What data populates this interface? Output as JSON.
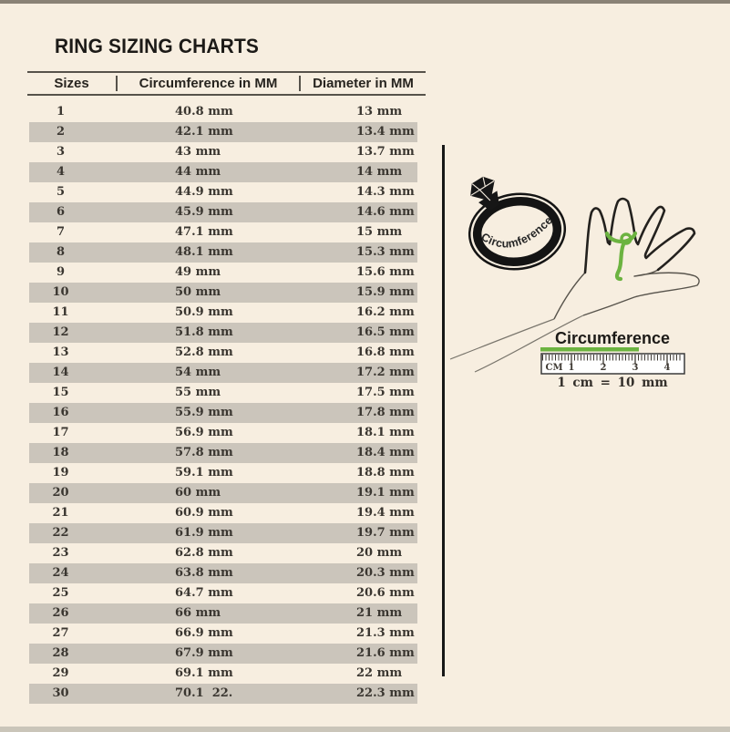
{
  "title": "RING SIZING CHARTS",
  "table": {
    "headers": [
      "Sizes",
      "Circumference in MM",
      "Diameter in MM"
    ],
    "rows": [
      {
        "size": "1",
        "circumference": "40.8 mm",
        "diameter": "13 mm"
      },
      {
        "size": "2",
        "circumference": "42.1 mm",
        "diameter": "13.4 mm"
      },
      {
        "size": "3",
        "circumference": "43 mm",
        "diameter": "13.7 mm"
      },
      {
        "size": "4",
        "circumference": "44 mm",
        "diameter": "14 mm"
      },
      {
        "size": "5",
        "circumference": "44.9 mm",
        "diameter": "14.3 mm"
      },
      {
        "size": "6",
        "circumference": "45.9 mm",
        "diameter": "14.6 mm"
      },
      {
        "size": "7",
        "circumference": "47.1 mm",
        "diameter": "15 mm"
      },
      {
        "size": "8",
        "circumference": "48.1 mm",
        "diameter": "15.3 mm"
      },
      {
        "size": "9",
        "circumference": "49 mm",
        "diameter": "15.6 mm"
      },
      {
        "size": "10",
        "circumference": "50 mm",
        "diameter": "15.9 mm"
      },
      {
        "size": "11",
        "circumference": "50.9 mm",
        "diameter": "16.2 mm"
      },
      {
        "size": "12",
        "circumference": "51.8 mm",
        "diameter": "16.5 mm"
      },
      {
        "size": "13",
        "circumference": "52.8 mm",
        "diameter": "16.8 mm"
      },
      {
        "size": "14",
        "circumference": "54 mm",
        "diameter": "17.2 mm"
      },
      {
        "size": "15",
        "circumference": "55 mm",
        "diameter": "17.5 mm"
      },
      {
        "size": "16",
        "circumference": "55.9 mm",
        "diameter": "17.8 mm"
      },
      {
        "size": "17",
        "circumference": "56.9 mm",
        "diameter": "18.1 mm"
      },
      {
        "size": "18",
        "circumference": "57.8 mm",
        "diameter": "18.4 mm"
      },
      {
        "size": "19",
        "circumference": "59.1 mm",
        "diameter": "18.8 mm"
      },
      {
        "size": "20",
        "circumference": "60 mm",
        "diameter": "19.1 mm"
      },
      {
        "size": "21",
        "circumference": "60.9 mm",
        "diameter": "19.4 mm"
      },
      {
        "size": "22",
        "circumference": "61.9 mm",
        "diameter": "19.7 mm"
      },
      {
        "size": "23",
        "circumference": "62.8 mm",
        "diameter": "20 mm"
      },
      {
        "size": "24",
        "circumference": "63.8 mm",
        "diameter": "20.3 mm"
      },
      {
        "size": "25",
        "circumference": "64.7 mm",
        "diameter": "20.6 mm"
      },
      {
        "size": "26",
        "circumference": "66 mm",
        "diameter": "21 mm"
      },
      {
        "size": "27",
        "circumference": "66.9 mm",
        "diameter": "21.3 mm"
      },
      {
        "size": "28",
        "circumference": "67.9 mm",
        "diameter": "21.6 mm"
      },
      {
        "size": "29",
        "circumference": "69.1 mm",
        "diameter": "22 mm"
      },
      {
        "size": "30",
        "circumference": "70.1  22.",
        "diameter": "22.3 mm"
      }
    ]
  },
  "illustration": {
    "ring_label": "Circumference",
    "ruler_title": "Circumference",
    "ruler_unit_label": "CM",
    "ruler_ticks": [
      "1",
      "2",
      "3",
      "4"
    ],
    "conversion_note": "1 cm = 10 mm"
  },
  "colors": {
    "background": "#f7eee0",
    "row_alt": "#cbc5bb",
    "accent_green": "#6cb340",
    "divider": "#171717",
    "text_dark": "#1c1a17"
  }
}
